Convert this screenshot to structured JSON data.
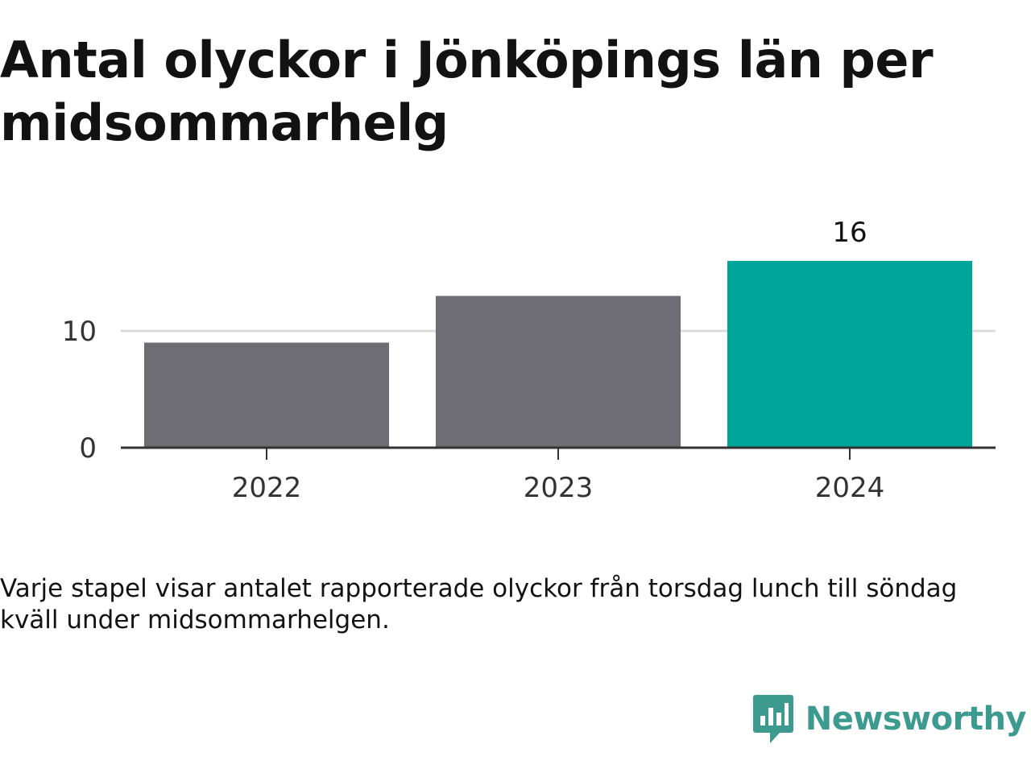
{
  "title": "Antal olyckor i Jönköpings län per midsommarhelg",
  "caption": "Varje stapel visar antalet rapporterade olyckor från torsdag lunch till söndag kväll under midsommarhelgen.",
  "brand": {
    "name": "Newsworthy",
    "color": "#3d9a8f"
  },
  "chart_data": {
    "type": "bar",
    "categories": [
      "2022",
      "2023",
      "2024"
    ],
    "values": [
      9,
      13,
      16
    ],
    "value_labels": [
      "",
      "",
      "16"
    ],
    "yticks": [
      0,
      10
    ],
    "ylim": [
      0,
      16
    ],
    "grid": true,
    "colors": [
      "#6e6d73",
      "#6e6d73",
      "#00a59a"
    ],
    "gridline_color": "#dcdcdc",
    "axis_color": "#333333"
  }
}
